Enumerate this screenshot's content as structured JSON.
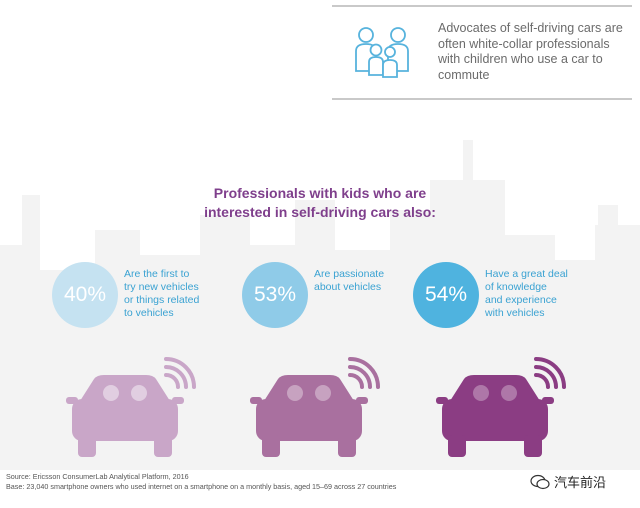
{
  "callout": {
    "icon": "family-icon",
    "text": "Advocates of self-driving cars are often white-collar professionals with children who use a car to commute"
  },
  "headline": {
    "line1": "Professionals with kids who are",
    "line2": "interested in self-driving cars also:"
  },
  "stats": [
    {
      "percent": "40%",
      "value": 40,
      "color": "#c5e2f1",
      "lines": [
        "Are the first to",
        "try new vehicles",
        "or things related",
        "to vehicles"
      ]
    },
    {
      "percent": "53%",
      "value": 53,
      "color": "#8fcbe8",
      "lines": [
        "Are passionate",
        "about vehicles"
      ]
    },
    {
      "percent": "54%",
      "value": 54,
      "color": "#4fb3df",
      "lines": [
        "Have a great deal",
        "of knowledge",
        "and experience",
        "with vehicles"
      ]
    }
  ],
  "cars": [
    {
      "icon": "connected-car-icon",
      "color": "#c9a6c8"
    },
    {
      "icon": "connected-car-icon",
      "color": "#a9709f"
    },
    {
      "icon": "connected-car-icon",
      "color": "#8b3d83"
    }
  ],
  "footer": {
    "source": "Source: Ericsson ConsumerLab Analytical Platform, 2016",
    "base": "Base: 23,040 smartphone owners who used internet on a smartphone on a monthly basis, aged 15–69 across 27 countries"
  },
  "watermark": {
    "text": "汽车前沿",
    "icon": "wechat-icon"
  }
}
